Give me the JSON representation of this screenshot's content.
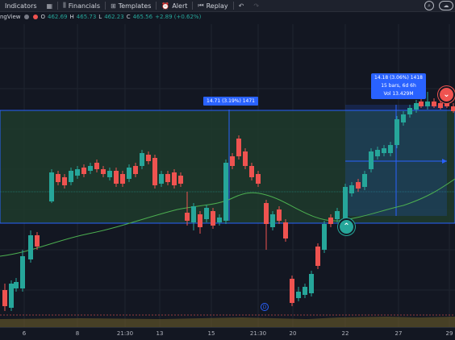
{
  "toolbar": {
    "indicators": "Indicators",
    "financials": "Financials",
    "templates": "Templates",
    "alert": "Alert",
    "replay": "Replay"
  },
  "legend": {
    "brand": "ngView",
    "open_k": "O",
    "open_v": "462.69",
    "high_k": "H",
    "high_v": "465.73",
    "low_k": "L",
    "low_v": "462.23",
    "close_k": "C",
    "close_v": "465.56",
    "change": "+2.89 (+0.62%)"
  },
  "measure1": {
    "label": "14.71 (3.19%) 1471"
  },
  "measure2": {
    "line1": "14.18 (3.06%) 1418",
    "line2": "15 bars, 6d 6h",
    "line3": "Vol 13.429M"
  },
  "xaxis": [
    "6",
    "8",
    "21:30",
    "13",
    "15",
    "21:30",
    "20",
    "22",
    "27",
    "29"
  ],
  "dividend_mark": "D",
  "colors": {
    "up": "#26a69a",
    "down": "#ef5350",
    "zone": "#1e3a2a",
    "zone_border": "#2962ff",
    "ma": "#4caf50",
    "measure": "#2962ff"
  }
}
